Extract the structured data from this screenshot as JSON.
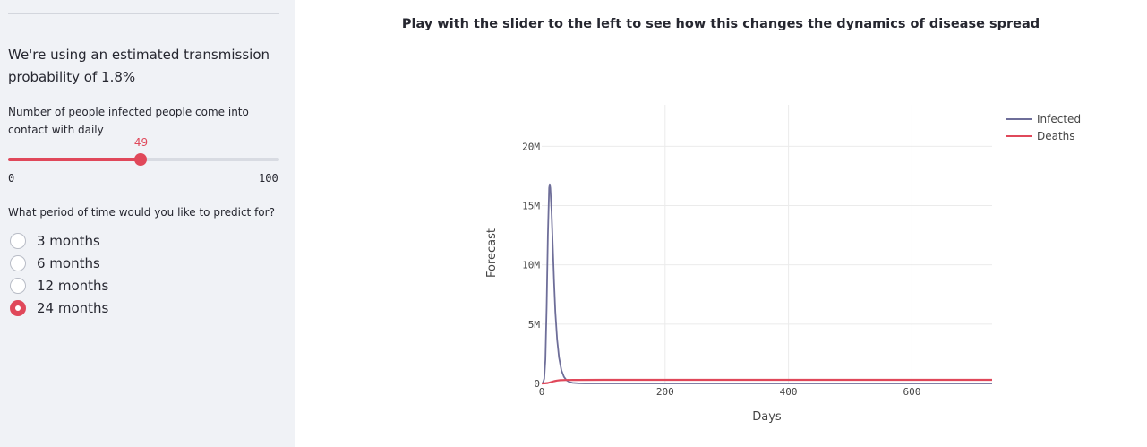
{
  "sidebar": {
    "intro_text": "We're using an estimated transmission probability of 1.8%",
    "slider": {
      "label": "Number of people infected people come into contact with daily",
      "value": 49,
      "min": 0,
      "max": 100,
      "value_label": "49",
      "min_label": "0",
      "max_label": "100",
      "accent_color": "#e0485a"
    },
    "period": {
      "label": "What period of time would you like to predict for?",
      "options": [
        "3 months",
        "6 months",
        "12 months",
        "24 months"
      ],
      "selected": "24 months"
    }
  },
  "main": {
    "heading": "Play with the slider to the left to see how this changes the dynamics of disease spread"
  },
  "chart_data": {
    "type": "line",
    "xlabel": "Days",
    "ylabel": "Forecast",
    "xlim": [
      0,
      730
    ],
    "ylim": [
      0,
      23500000
    ],
    "x_ticks": [
      0,
      200,
      400,
      600
    ],
    "x_tick_labels": [
      "0",
      "200",
      "400",
      "600"
    ],
    "y_ticks": [
      0,
      5000000,
      10000000,
      15000000,
      20000000
    ],
    "y_tick_labels": [
      "0",
      "5M",
      "10M",
      "15M",
      "20M"
    ],
    "grid": true,
    "legend_position": "top-right",
    "series": [
      {
        "name": "Infected",
        "color": "#6e6e99",
        "x": [
          0,
          2,
          4,
          6,
          8,
          10,
          12,
          13,
          14,
          16,
          18,
          20,
          22,
          25,
          28,
          32,
          36,
          40,
          45,
          50,
          60,
          70,
          80,
          100,
          200,
          400,
          600,
          730
        ],
        "y": [
          0,
          50000,
          400000,
          2000000,
          6500000,
          12500000,
          16500000,
          16800000,
          16500000,
          14500000,
          11500000,
          8500000,
          6000000,
          3700000,
          2200000,
          1100000,
          550000,
          270000,
          110000,
          45000,
          10000,
          2000,
          500,
          0,
          0,
          0,
          0,
          0
        ]
      },
      {
        "name": "Deaths",
        "color": "#e0485a",
        "x": [
          0,
          5,
          10,
          15,
          20,
          25,
          30,
          40,
          50,
          60,
          100,
          200,
          400,
          600,
          730
        ],
        "y": [
          0,
          5000,
          40000,
          110000,
          190000,
          240000,
          270000,
          290000,
          295000,
          297000,
          300000,
          300000,
          300000,
          300000,
          300000
        ]
      }
    ]
  }
}
